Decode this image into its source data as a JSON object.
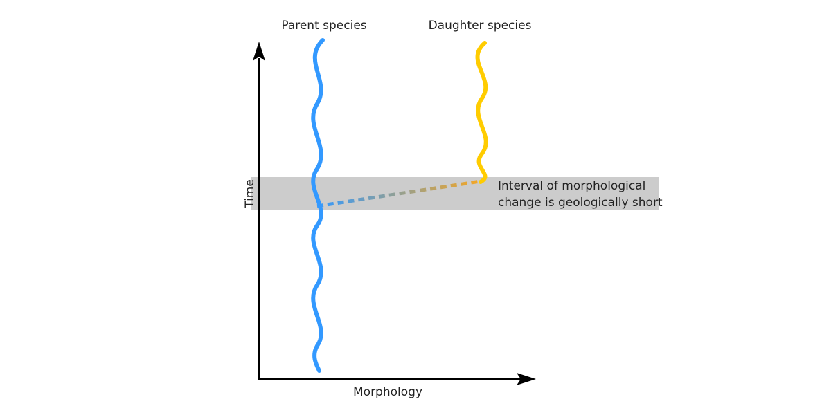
{
  "labels": {
    "parent_species": "Parent species",
    "daughter_species": "Daughter species",
    "y_axis": "Time",
    "x_axis": "Morphology",
    "interval_line1": "Interval of morphological",
    "interval_line2": "change is geologically short"
  },
  "colors": {
    "parent_lineage": "#3399ff",
    "daughter_lineage": "#ffcc00",
    "interval_band": "#cccccc",
    "axis": "#000000"
  }
}
